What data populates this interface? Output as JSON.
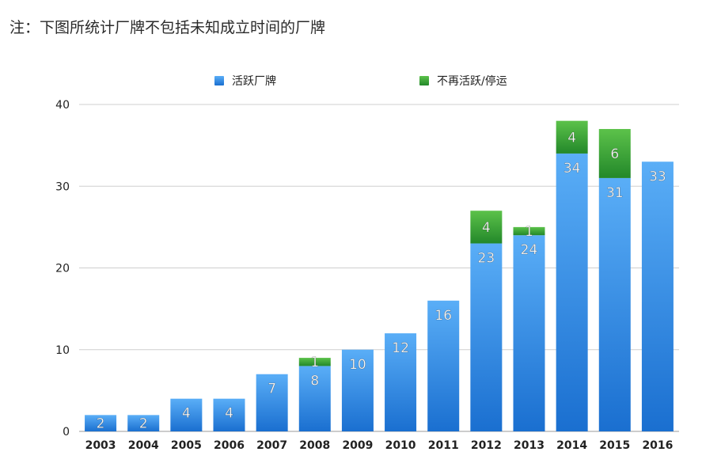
{
  "note": "注：下图所统计厂牌不包括未知成立时间的厂牌",
  "colors": {
    "active_top": "#5aaef7",
    "active_bottom": "#1a6fd0",
    "inactive_top": "#5cc24a",
    "inactive_bottom": "#23882a",
    "grid": "#cfcfcf",
    "axis_text": "#222222",
    "bar_label": "#ffffff"
  },
  "chart_data": {
    "type": "bar",
    "stacked": true,
    "categories": [
      "2003",
      "2004",
      "2005",
      "2006",
      "2007",
      "2008",
      "2009",
      "2010",
      "2011",
      "2012",
      "2013",
      "2014",
      "2015",
      "2016"
    ],
    "series": [
      {
        "name": "活跃厂牌",
        "values": [
          2,
          2,
          4,
          4,
          7,
          8,
          10,
          12,
          16,
          23,
          24,
          34,
          31,
          33
        ]
      },
      {
        "name": "不再活跃/停运",
        "values": [
          0,
          0,
          0,
          0,
          0,
          1,
          0,
          0,
          0,
          4,
          1,
          4,
          6,
          0
        ]
      }
    ],
    "yticks": [
      0,
      10,
      20,
      30,
      40
    ],
    "ylim": [
      0,
      40
    ],
    "grid": true,
    "legend_position": "top"
  }
}
